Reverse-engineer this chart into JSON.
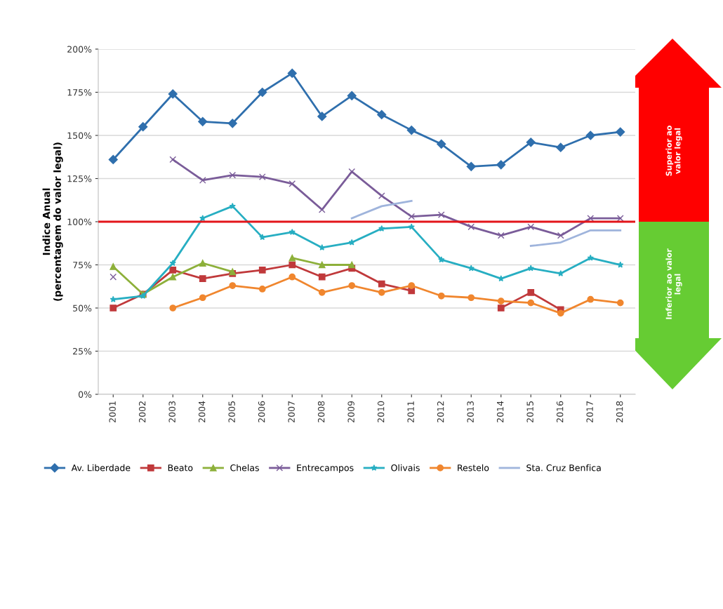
{
  "chart_data": {
    "type": "line",
    "ylabel": "Indice Anual\n(percentagem do valor legal)",
    "categories": [
      "2001",
      "2002",
      "2003",
      "2004",
      "2005",
      "2006",
      "2007",
      "2008",
      "2009",
      "2010",
      "2011",
      "2012",
      "2013",
      "2014",
      "2015",
      "2016",
      "2017",
      "2018"
    ],
    "series": [
      {
        "name": "Av. Liberdade",
        "color": "#2f6fad",
        "marker": "diamond",
        "values": [
          136,
          155,
          174,
          158,
          157,
          175,
          186,
          161,
          173,
          162,
          153,
          145,
          132,
          133,
          146,
          143,
          150,
          152
        ]
      },
      {
        "name": "Beato",
        "color": "#c0393b",
        "marker": "square",
        "values": [
          50,
          58,
          72,
          67,
          70,
          72,
          75,
          68,
          73,
          64,
          60,
          null,
          null,
          50,
          59,
          49,
          null,
          null
        ]
      },
      {
        "name": "Chelas",
        "color": "#8db03a",
        "marker": "triangle",
        "values": [
          74,
          58,
          68,
          76,
          71,
          null,
          79,
          75,
          75,
          null,
          null,
          null,
          null,
          null,
          null,
          null,
          null,
          null
        ]
      },
      {
        "name": "Entrecampos",
        "color": "#7a5c99",
        "marker": "cross",
        "values": [
          68,
          null,
          136,
          124,
          127,
          126,
          122,
          107,
          129,
          115,
          103,
          104,
          97,
          92,
          97,
          92,
          102,
          102
        ]
      },
      {
        "name": "Olivais",
        "color": "#27aec2",
        "marker": "star",
        "values": [
          55,
          57,
          76,
          102,
          109,
          91,
          94,
          85,
          88,
          96,
          97,
          78,
          73,
          67,
          73,
          70,
          79,
          75
        ]
      },
      {
        "name": "Restelo",
        "color": "#f0862e",
        "marker": "circle",
        "values": [
          null,
          null,
          50,
          56,
          63,
          61,
          68,
          59,
          63,
          59,
          63,
          57,
          56,
          54,
          53,
          47,
          55,
          53
        ]
      },
      {
        "name": "Sta. Cruz Benfica",
        "color": "#9fb4dc",
        "marker": "none",
        "values": [
          null,
          null,
          null,
          null,
          null,
          null,
          null,
          null,
          102,
          109,
          112,
          null,
          null,
          null,
          86,
          88,
          95,
          95
        ]
      }
    ],
    "ylim": [
      0,
      200
    ],
    "yticks": [
      {
        "value": 0,
        "label": "0%"
      },
      {
        "value": 25,
        "label": "25%"
      },
      {
        "value": 50,
        "label": "50%"
      },
      {
        "value": 75,
        "label": "75%"
      },
      {
        "value": 100,
        "label": "100%"
      },
      {
        "value": 125,
        "label": "125%"
      },
      {
        "value": 150,
        "label": "150%"
      },
      {
        "value": 175,
        "label": "175%"
      },
      {
        "value": 200,
        "label": "200%"
      }
    ],
    "ref_lines": [
      {
        "axis": "y",
        "value": 100,
        "color": "#e3151a"
      }
    ],
    "annotations": [
      "Superior ao\nvalor legal",
      "Inferior ao valor\nlegal"
    ],
    "grid": "y",
    "legend": "bottom"
  }
}
